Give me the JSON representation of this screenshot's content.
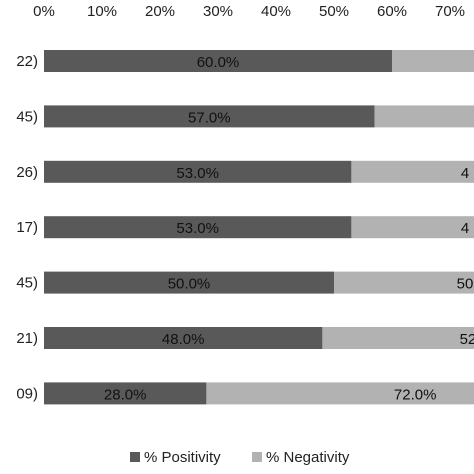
{
  "chart_data": {
    "type": "bar",
    "orientation": "horizontal",
    "stacked": true,
    "categories": [
      "22)",
      "45)",
      "26)",
      "17)",
      "45)",
      "21)",
      "09)"
    ],
    "series": [
      {
        "name": "% Positivity",
        "values": [
          60.0,
          57.0,
          53.0,
          53.0,
          50.0,
          48.0,
          28.0
        ],
        "labels": [
          "60.0%",
          "57.0%",
          "53.0%",
          "53.0%",
          "50.0%",
          "48.0%",
          "28.0%"
        ],
        "color": "#595959"
      },
      {
        "name": "% Negativity",
        "values": [
          40.0,
          43.0,
          47.0,
          47.0,
          50.0,
          52.0,
          72.0
        ],
        "labels": [
          "",
          "",
          "4",
          "4",
          "50",
          "52.",
          "72.0%"
        ],
        "color": "#b2b2b2"
      }
    ],
    "x_ticks": [
      "0%",
      "10%",
      "20%",
      "30%",
      "40%",
      "50%",
      "60%",
      "70%"
    ],
    "xlim": [
      0,
      100
    ],
    "x_axis_position": "top",
    "grid": false,
    "legend": "bottom"
  }
}
